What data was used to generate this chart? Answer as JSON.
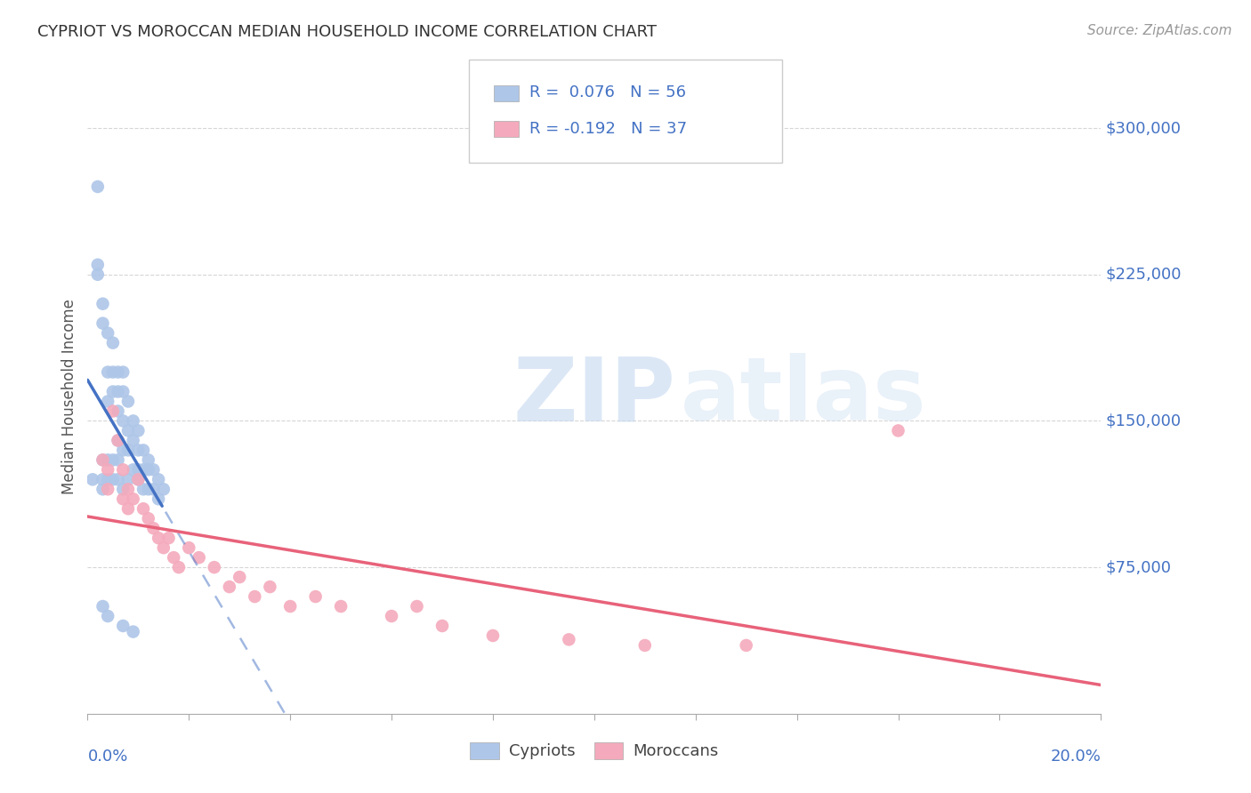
{
  "title": "CYPRIOT VS MOROCCAN MEDIAN HOUSEHOLD INCOME CORRELATION CHART",
  "source": "Source: ZipAtlas.com",
  "ylabel": "Median Household Income",
  "watermark": "ZIPatlas",
  "xmin": 0.0,
  "xmax": 0.2,
  "ymin": 0,
  "ymax": 325000,
  "yticks": [
    75000,
    150000,
    225000,
    300000
  ],
  "ytick_labels": [
    "$75,000",
    "$150,000",
    "$225,000",
    "$300,000"
  ],
  "cypriot_color": "#aec6e8",
  "moroccan_color": "#f4aabc",
  "cypriot_line_color": "#4472c4",
  "moroccan_line_color": "#e8627a",
  "background_color": "#ffffff",
  "grid_color": "#cccccc",
  "right_label_color": "#4472c4",
  "text_color": "#555555",
  "cypriot_x": [
    0.001,
    0.002,
    0.002,
    0.002,
    0.003,
    0.003,
    0.003,
    0.003,
    0.003,
    0.004,
    0.004,
    0.004,
    0.004,
    0.004,
    0.005,
    0.005,
    0.005,
    0.005,
    0.005,
    0.006,
    0.006,
    0.006,
    0.006,
    0.006,
    0.006,
    0.007,
    0.007,
    0.007,
    0.007,
    0.007,
    0.008,
    0.008,
    0.008,
    0.008,
    0.009,
    0.009,
    0.009,
    0.01,
    0.01,
    0.01,
    0.01,
    0.011,
    0.011,
    0.011,
    0.012,
    0.012,
    0.012,
    0.013,
    0.013,
    0.014,
    0.014,
    0.015,
    0.003,
    0.004,
    0.007,
    0.009
  ],
  "cypriot_y": [
    120000,
    270000,
    230000,
    225000,
    210000,
    200000,
    130000,
    120000,
    115000,
    195000,
    175000,
    160000,
    130000,
    120000,
    190000,
    175000,
    165000,
    130000,
    120000,
    175000,
    165000,
    155000,
    140000,
    130000,
    120000,
    175000,
    165000,
    150000,
    135000,
    115000,
    160000,
    145000,
    135000,
    120000,
    150000,
    140000,
    125000,
    145000,
    135000,
    125000,
    120000,
    135000,
    125000,
    115000,
    130000,
    125000,
    115000,
    125000,
    115000,
    120000,
    110000,
    115000,
    55000,
    50000,
    45000,
    42000
  ],
  "moroccan_x": [
    0.003,
    0.004,
    0.004,
    0.005,
    0.006,
    0.007,
    0.007,
    0.008,
    0.008,
    0.009,
    0.01,
    0.011,
    0.012,
    0.013,
    0.014,
    0.015,
    0.016,
    0.017,
    0.018,
    0.02,
    0.022,
    0.025,
    0.028,
    0.03,
    0.033,
    0.036,
    0.04,
    0.045,
    0.05,
    0.06,
    0.065,
    0.07,
    0.08,
    0.095,
    0.11,
    0.13,
    0.16
  ],
  "moroccan_y": [
    130000,
    125000,
    115000,
    155000,
    140000,
    125000,
    110000,
    115000,
    105000,
    110000,
    120000,
    105000,
    100000,
    95000,
    90000,
    85000,
    90000,
    80000,
    75000,
    85000,
    80000,
    75000,
    65000,
    70000,
    60000,
    65000,
    55000,
    60000,
    55000,
    50000,
    55000,
    45000,
    40000,
    38000,
    35000,
    35000,
    145000
  ]
}
